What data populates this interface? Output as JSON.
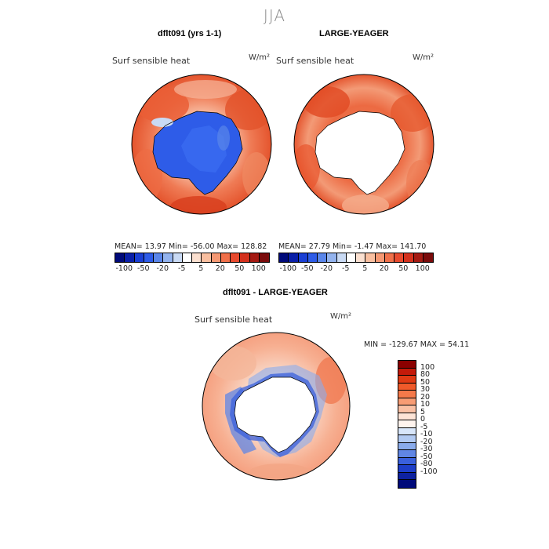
{
  "season_title": "JJA",
  "panels": [
    {
      "title": "dflt091 (yrs 1-1)",
      "field_label": "Surf sensible heat",
      "units": "W/m²",
      "stats_text": "MEAN=   13.97  Min=  -56.00  Max=  128.82"
    },
    {
      "title": "LARGE-YEAGER",
      "field_label": "Surf sensible heat",
      "units": "W/m²",
      "stats_text": "MEAN=   27.79  Min=   -1.47  Max=  141.70"
    },
    {
      "title": "dflt091 - LARGE-YEAGER",
      "field_label": "Surf sensible heat",
      "units": "W/m²",
      "stats_text": "MIN = -129.67 MAX =  54.11"
    }
  ],
  "top_colorbar": {
    "colors": [
      "#000a7a",
      "#0a1fa8",
      "#1a3fd4",
      "#2e5ce8",
      "#5a86ea",
      "#93b3ee",
      "#c9daf4",
      "#ffffff",
      "#fbe0d0",
      "#f9bfa0",
      "#f59873",
      "#f0704a",
      "#e84a2e",
      "#d4311d",
      "#a51a12",
      "#7a0b0b"
    ],
    "tick_labels": [
      "-100",
      "-50",
      "-20",
      "-5",
      "5",
      "20",
      "50",
      "100"
    ]
  },
  "diff_colorbar": {
    "colors": [
      "#8b0000",
      "#c41a0a",
      "#e03a14",
      "#f05a2a",
      "#f5794a",
      "#f79c74",
      "#f9c0a4",
      "#fde4d6",
      "#fff4ee",
      "#d8e6fa",
      "#b2caf2",
      "#8aacec",
      "#6086e4",
      "#3a60dc",
      "#1e3ec8",
      "#0e22a0",
      "#000a7a"
    ],
    "tick_labels": [
      "100",
      "80",
      "50",
      "30",
      "20",
      "10",
      "5",
      "0",
      "-5",
      "-10",
      "-20",
      "-30",
      "-50",
      "-80",
      "-100"
    ]
  }
}
